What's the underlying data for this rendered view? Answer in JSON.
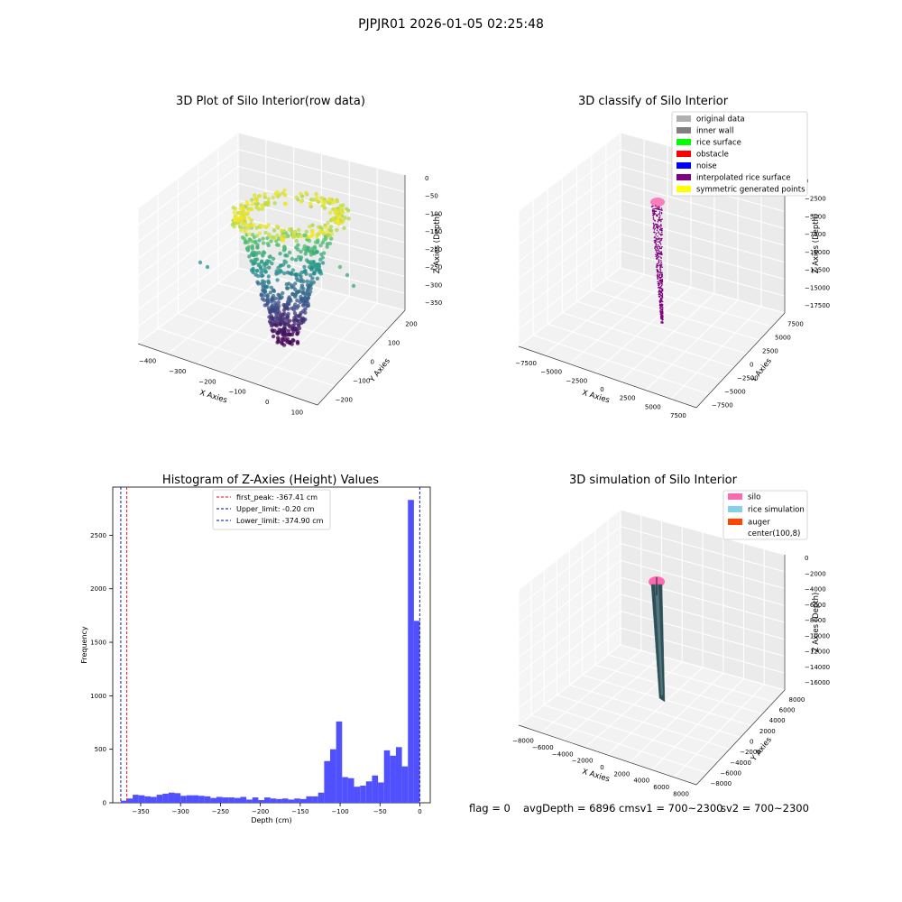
{
  "figure_title": "PJPJR01 2026-01-05 02:25:48",
  "footer": {
    "flag": "flag = 0",
    "avg_depth": "avgDepth = 6896 cmsv1 = 700~2300",
    "sv2": "sv2 = 700~2300"
  },
  "colors": {
    "hist_bar": "#5050ff",
    "first_peak_line": "#ff0000",
    "limit_line": "#0000aa",
    "grey": "#b0b0b0",
    "inner_wall": "#808080",
    "rice_surface": "#00ff00",
    "obstacle": "#ff0000",
    "noise": "#0000ff",
    "interpolated": "#800080",
    "symmetric": "#ffff00",
    "silo": "#ff69b4",
    "rice_sim": "#87ceeb",
    "auger": "#ff4500"
  },
  "chart_data": [
    {
      "type": "scatter",
      "title": "3D Plot of Silo Interior(row data)",
      "xlabel": "X Axies",
      "ylabel": "Y Axies",
      "zlabel": "Z Axies (Depth)",
      "xticks": [
        "−400",
        "−300",
        "−200",
        "−100",
        "0",
        "100"
      ],
      "yticks": [
        "−200",
        "−100",
        "0",
        "100",
        "200"
      ],
      "zticks": [
        "0",
        "−50",
        "−100",
        "−150",
        "−200",
        "−250",
        "−300",
        "−350"
      ],
      "colormap": "viridis",
      "zlim": [
        -370,
        0
      ]
    },
    {
      "type": "scatter",
      "title": "3D classify of Silo Interior",
      "xlabel": "X Axies",
      "ylabel": "Y Axies",
      "zlabel": "Z Axies (Depth)",
      "xticks": [
        "−7500",
        "−5000",
        "−2500",
        "0",
        "2500",
        "5000",
        "7500"
      ],
      "yticks": [
        "−7500",
        "−5000",
        "−2500",
        "0",
        "2500",
        "5000",
        "7500"
      ],
      "zticks": [
        "0",
        "−2500",
        "−5000",
        "−7500",
        "−10000",
        "−12500",
        "−15000",
        "−17500"
      ],
      "legend": [
        "original data",
        "inner wall",
        "rice surface",
        "obstacle",
        "noise",
        "interpolated rice surface",
        "symmetric generated points"
      ],
      "legend_position": "top-right"
    },
    {
      "type": "bar",
      "title": "Histogram of Z-Axies (Height) Values",
      "xlabel": "Depth (cm)",
      "ylabel": "Frequency",
      "xlim": [
        -385,
        13
      ],
      "ylim": [
        0,
        2950
      ],
      "xticks": [
        -350,
        -300,
        -250,
        -200,
        -150,
        -100,
        -50,
        0
      ],
      "xtick_labels": [
        "−350",
        "−300",
        "−250",
        "−200",
        "−150",
        "−100",
        "−50",
        "0"
      ],
      "yticks": [
        0,
        500,
        1000,
        1500,
        2000,
        2500
      ],
      "bin_edges_start": -375,
      "bin_width": 7.5,
      "frequencies": [
        20,
        40,
        75,
        70,
        60,
        55,
        75,
        85,
        95,
        90,
        65,
        70,
        70,
        65,
        60,
        45,
        55,
        50,
        50,
        45,
        55,
        30,
        50,
        25,
        50,
        40,
        35,
        40,
        30,
        40,
        35,
        60,
        60,
        95,
        390,
        500,
        760,
        240,
        230,
        150,
        160,
        200,
        255,
        190,
        490,
        440,
        520,
        340,
        2830,
        1700
      ],
      "vlines": [
        {
          "label": "first_peak: -367.41 cm",
          "x": -367.41,
          "color": "#ff0000"
        },
        {
          "label": "Upper_limit: -0.20 cm",
          "x": -0.2,
          "color": "#0000aa"
        },
        {
          "label": "Lower_limit: -374.90 cm",
          "x": -374.9,
          "color": "#0000aa"
        }
      ],
      "legend_position": "top-center"
    },
    {
      "type": "area",
      "title": "3D simulation of Silo Interior",
      "xlabel": "X Axies",
      "ylabel": "Y Axies",
      "zlabel": "Z Axies (Depth)",
      "xticks": [
        "−8000",
        "−6000",
        "−4000",
        "−2000",
        "0",
        "2000",
        "4000",
        "6000",
        "8000"
      ],
      "yticks": [
        "−8000",
        "−6000",
        "−4000",
        "−2000",
        "0",
        "2000",
        "4000",
        "6000",
        "8000"
      ],
      "zticks": [
        "0",
        "−2000",
        "−4000",
        "−6000",
        "−8000",
        "−10000",
        "−12000",
        "−14000",
        "−16000"
      ],
      "legend": [
        "silo",
        "rice simulation",
        "auger",
        "center(100,8)"
      ],
      "legend_position": "top-right"
    }
  ]
}
